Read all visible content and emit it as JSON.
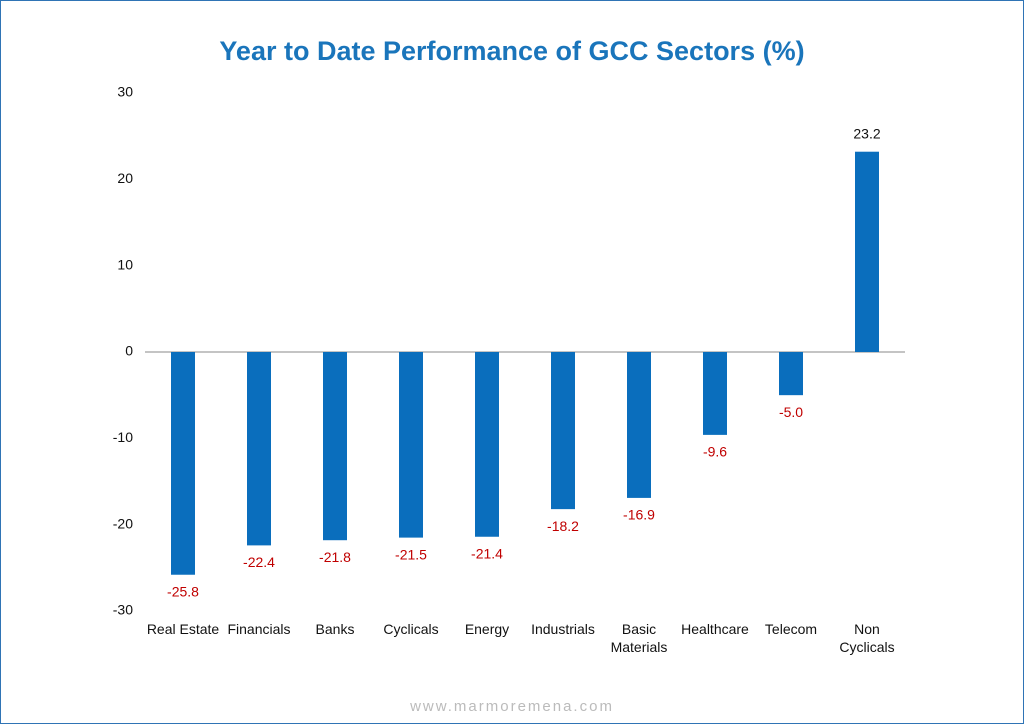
{
  "chart_data": {
    "type": "bar",
    "title": "Year to Date Performance of GCC Sectors (%)",
    "categories": [
      "Real Estate",
      "Financials",
      "Banks",
      "Cyclicals",
      "Energy",
      "Industrials",
      "Basic Materials",
      "Healthcare",
      "Telecom",
      "Non Cyclicals"
    ],
    "values": [
      -25.8,
      -22.4,
      -21.8,
      -21.5,
      -21.4,
      -18.2,
      -16.9,
      -9.6,
      -5.0,
      23.2
    ],
    "value_labels": [
      "-25.8",
      "-22.4",
      "-21.8",
      "-21.5",
      "-21.4",
      "-18.2",
      "-16.9",
      "-9.6",
      "-5.0",
      "23.2"
    ],
    "color": "#0a6ebd",
    "ylim": [
      -30,
      30
    ],
    "yticks": [
      -30,
      -20,
      -10,
      0,
      10,
      20,
      30
    ],
    "grid": false,
    "footer": "www.marmoremena.com"
  }
}
